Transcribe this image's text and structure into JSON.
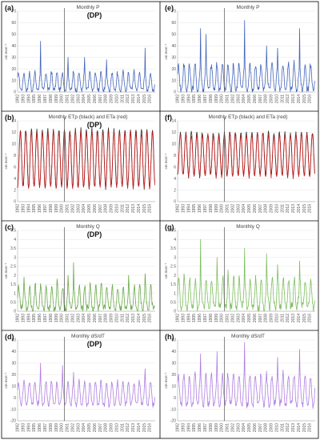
{
  "chart_data": [
    {
      "id": "a",
      "panel_label": "(a)",
      "title": "Monthly P",
      "annotation": "(DP)",
      "type": "line",
      "ylabel": "cm mon⁻¹",
      "ylim": [
        0,
        70
      ],
      "yticks": [
        0,
        10,
        20,
        30,
        40,
        50,
        60,
        70
      ],
      "x_start_year": 1992,
      "x_end_year": 2016,
      "xtick_labels": [
        "1992",
        "1993",
        "1994",
        "1995",
        "1996",
        "1997",
        "1998",
        "1999",
        "2000",
        "2001",
        "2002",
        "2003",
        "2004",
        "2005",
        "2006",
        "2007",
        "2008",
        "2009",
        "2010",
        "2011",
        "2012",
        "2013",
        "2014",
        "2015",
        "2016"
      ],
      "divider_year": 2000.5,
      "series": [
        {
          "color": "#4466bb",
          "base": 2,
          "amp": 15,
          "phase": 0.15,
          "sharp": 1.8,
          "noise": 4,
          "peaks": {
            "1996": 44,
            "2001": 30,
            "2004": 30,
            "2008": 28,
            "2015": 38
          }
        }
      ]
    },
    {
      "id": "e",
      "panel_label": "(e)",
      "title": "Monthly P",
      "type": "line",
      "ylabel": "cm mon⁻¹",
      "ylim": [
        0,
        70
      ],
      "yticks": [
        0,
        10,
        20,
        30,
        40,
        50,
        60,
        70
      ],
      "x_start_year": 1992,
      "x_end_year": 2016,
      "xtick_labels": [
        "1992",
        "1993",
        "1994",
        "1995",
        "1996",
        "1997",
        "1998",
        "1999",
        "2000",
        "2001",
        "2002",
        "2003",
        "2004",
        "2005",
        "2006",
        "2007",
        "2008",
        "2009",
        "2010",
        "2011",
        "2012",
        "2013",
        "2014",
        "2015",
        "2016"
      ],
      "divider_year": 2000.5,
      "series": [
        {
          "color": "#4466bb",
          "base": 2,
          "amp": 22,
          "phase": 0.15,
          "sharp": 1.6,
          "noise": 6,
          "peaks": {
            "1996": 55,
            "1997": 50,
            "2004": 62,
            "2008": 40,
            "2010": 38,
            "2014": 55
          }
        }
      ]
    },
    {
      "id": "b",
      "panel_label": "(b)",
      "title": "Monthly ETp (black) and ETa (red)",
      "annotation": "(DP)",
      "type": "line",
      "ylabel": "cm mon⁻¹",
      "ylim": [
        0,
        14
      ],
      "yticks": [
        0,
        2,
        4,
        6,
        8,
        10,
        12,
        14
      ],
      "x_start_year": 1992,
      "x_end_year": 2016,
      "xtick_labels": [
        "1992",
        "1993",
        "1994",
        "1995",
        "1996",
        "1997",
        "1998",
        "1999",
        "2000",
        "2001",
        "2002",
        "2003",
        "2004",
        "2005",
        "2006",
        "2007",
        "2008",
        "2009",
        "2010",
        "2011",
        "2012",
        "2013",
        "2014",
        "2015",
        "2016"
      ],
      "divider_year": 2000.5,
      "series": [
        {
          "color": "#333333",
          "base": 2.5,
          "amp": 10,
          "phase": 0.5,
          "sharp": 1.0,
          "noise": 0.6,
          "peaks": {}
        },
        {
          "color": "#cc1a1a",
          "base": 2.4,
          "amp": 9.6,
          "phase": 0.5,
          "sharp": 1.0,
          "noise": 0.6,
          "peaks": {}
        }
      ]
    },
    {
      "id": "f",
      "panel_label": "(f)",
      "title": "Monthly ETp (black) and ETa (red)",
      "type": "line",
      "ylabel": "cm mon⁻¹",
      "ylim": [
        0,
        14
      ],
      "yticks": [
        0,
        2,
        4,
        6,
        8,
        10,
        12,
        14
      ],
      "x_start_year": 1992,
      "x_end_year": 2016,
      "xtick_labels": [
        "1992",
        "1993",
        "1994",
        "1995",
        "1996",
        "1997",
        "1998",
        "1999",
        "2000",
        "2001",
        "2002",
        "2003",
        "2004",
        "2005",
        "2006",
        "2007",
        "2008",
        "2009",
        "2010",
        "2011",
        "2012",
        "2013",
        "2014",
        "2015",
        "2016"
      ],
      "divider_year": 2000.5,
      "series": [
        {
          "color": "#333333",
          "base": 4.5,
          "amp": 7.5,
          "phase": 0.5,
          "sharp": 1.0,
          "noise": 0.7,
          "peaks": {}
        },
        {
          "color": "#cc1a1a",
          "base": 4.4,
          "amp": 7.2,
          "phase": 0.5,
          "sharp": 1.0,
          "noise": 0.7,
          "peaks": {}
        }
      ]
    },
    {
      "id": "c",
      "panel_label": "(c)",
      "title": "Monthly Q",
      "annotation": "(DP)",
      "type": "line",
      "ylabel": "cm mon⁻¹",
      "ylim": [
        0,
        4.5
      ],
      "yticks": [
        0,
        0.5,
        1,
        1.5,
        2,
        2.5,
        3,
        3.5,
        4,
        4.5
      ],
      "x_start_year": 1992,
      "x_end_year": 2016,
      "xtick_labels": [
        "1992",
        "1993",
        "1994",
        "1995",
        "1996",
        "1997",
        "1998",
        "1999",
        "2000",
        "2001",
        "2002",
        "2003",
        "2004",
        "2005",
        "2006",
        "2007",
        "2008",
        "2009",
        "2010",
        "2011",
        "2012",
        "2013",
        "2014",
        "2015",
        "2016"
      ],
      "divider_year": 2000.5,
      "series": [
        {
          "color": "#6aaa4a",
          "base": 0.15,
          "amp": 1.3,
          "phase": 0.2,
          "sharp": 2.2,
          "noise": 0.35,
          "peaks": {
            "1993": 1.9,
            "1999": 1.8,
            "2001": 2.0,
            "2002": 2.7,
            "2005": 1.6,
            "2012": 2.0,
            "2015": 2.1
          }
        }
      ]
    },
    {
      "id": "g",
      "panel_label": "(g)",
      "title": "Monthly Q",
      "type": "line",
      "ylabel": "cm mon⁻¹",
      "ylim": [
        0,
        4.5
      ],
      "yticks": [
        0,
        0.5,
        1,
        1.5,
        2,
        2.5,
        3,
        3.5,
        4,
        4.5
      ],
      "x_start_year": 1992,
      "x_end_year": 2016,
      "xtick_labels": [
        "1992",
        "1993",
        "1994",
        "1995",
        "1996",
        "1997",
        "1998",
        "1999",
        "2000",
        "2001",
        "2002",
        "2003",
        "2004",
        "2005",
        "2006",
        "2007",
        "2008",
        "2009",
        "2010",
        "2011",
        "2012",
        "2013",
        "2014",
        "2015",
        "2016"
      ],
      "divider_year": 2000.5,
      "series": [
        {
          "color": "#7fbf5f",
          "base": 0.25,
          "amp": 1.6,
          "phase": 0.2,
          "sharp": 2.0,
          "noise": 0.45,
          "peaks": {
            "1996": 4.0,
            "1999": 3.0,
            "2001": 2.3,
            "2004": 3.5,
            "2008": 3.2,
            "2010": 2.6,
            "2014": 2.8
          }
        }
      ]
    },
    {
      "id": "d",
      "panel_label": "(d)",
      "title": "Monthly dS/dT",
      "annotation": "(DP)",
      "type": "line",
      "ylabel": "cm mon⁻¹",
      "ylim": [
        -20,
        50
      ],
      "yticks": [
        -20,
        -10,
        0,
        10,
        20,
        30,
        40,
        50
      ],
      "x_start_year": 1992,
      "x_end_year": 2016,
      "xtick_labels": [
        "1992",
        "1993",
        "1994",
        "1995",
        "1996",
        "1997",
        "1998",
        "1999",
        "2000",
        "2001",
        "2002",
        "2003",
        "2004",
        "2005",
        "2006",
        "2007",
        "2008",
        "2009",
        "2010",
        "2011",
        "2012",
        "2013",
        "2014",
        "2015",
        "2016"
      ],
      "divider_year": 2000.5,
      "series": [
        {
          "color": "#b07fdf",
          "base": -6,
          "amp": 20,
          "phase": 0.15,
          "sharp": 1.6,
          "noise": 4,
          "peaks": {
            "1996": 30,
            "2000": 28,
            "2002": 22,
            "2015": 25
          }
        }
      ]
    },
    {
      "id": "h",
      "panel_label": "(h)",
      "title": "Monthly dS/dT",
      "type": "line",
      "ylabel": "cm mon⁻¹",
      "ylim": [
        -20,
        50
      ],
      "yticks": [
        -20,
        -10,
        0,
        10,
        20,
        30,
        40,
        50
      ],
      "x_start_year": 1992,
      "x_end_year": 2016,
      "xtick_labels": [
        "1992",
        "1993",
        "1994",
        "1995",
        "1996",
        "1997",
        "1998",
        "1999",
        "2000",
        "2001",
        "2002",
        "2003",
        "2004",
        "2005",
        "2006",
        "2007",
        "2008",
        "2009",
        "2010",
        "2011",
        "2012",
        "2013",
        "2014",
        "2015",
        "2016"
      ],
      "divider_year": 2000.5,
      "series": [
        {
          "color": "#b07fdf",
          "base": -6,
          "amp": 26,
          "phase": 0.15,
          "sharp": 1.5,
          "noise": 6,
          "peaks": {
            "1996": 38,
            "1999": 40,
            "2004": 48,
            "2010": 35,
            "2014": 42
          }
        }
      ]
    }
  ]
}
